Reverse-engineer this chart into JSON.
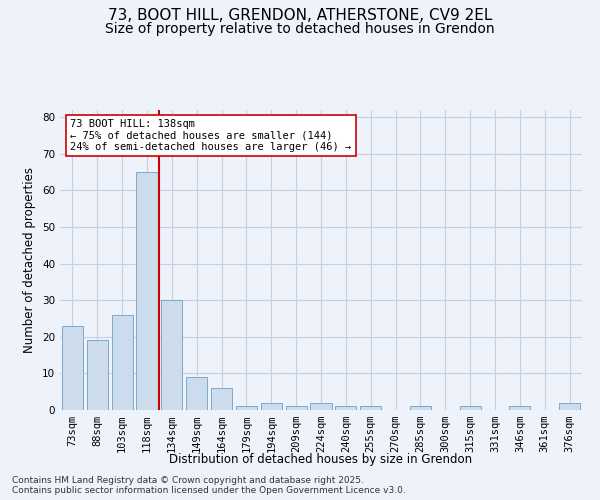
{
  "title_line1": "73, BOOT HILL, GRENDON, ATHERSTONE, CV9 2EL",
  "title_line2": "Size of property relative to detached houses in Grendon",
  "xlabel": "Distribution of detached houses by size in Grendon",
  "ylabel": "Number of detached properties",
  "bar_labels": [
    "73sqm",
    "88sqm",
    "103sqm",
    "118sqm",
    "134sqm",
    "149sqm",
    "164sqm",
    "179sqm",
    "194sqm",
    "209sqm",
    "224sqm",
    "240sqm",
    "255sqm",
    "270sqm",
    "285sqm",
    "300sqm",
    "315sqm",
    "331sqm",
    "346sqm",
    "361sqm",
    "376sqm"
  ],
  "bar_heights": [
    23,
    19,
    26,
    65,
    30,
    9,
    6,
    1,
    2,
    1,
    2,
    1,
    1,
    0,
    1,
    0,
    1,
    0,
    1,
    0,
    2
  ],
  "bar_color": "#ccdcec",
  "bar_edgecolor": "#7aaac8",
  "grid_color": "#c8d0df",
  "background_color": "#eef2fa",
  "vline_x": 3.5,
  "vline_color": "#cc0000",
  "annotation_line1": "73 BOOT HILL: 138sqm",
  "annotation_line2": "← 75% of detached houses are smaller (144)",
  "annotation_line3": "24% of semi-detached houses are larger (46) →",
  "annotation_box_color": "white",
  "annotation_box_edgecolor": "#cc0000",
  "ylim": [
    0,
    82
  ],
  "yticks": [
    0,
    10,
    20,
    30,
    40,
    50,
    60,
    70,
    80
  ],
  "footer_line1": "Contains HM Land Registry data © Crown copyright and database right 2025.",
  "footer_line2": "Contains public sector information licensed under the Open Government Licence v3.0.",
  "title_fontsize": 11,
  "subtitle_fontsize": 10,
  "axis_label_fontsize": 8.5,
  "tick_fontsize": 7.5,
  "annotation_fontsize": 7.5,
  "footer_fontsize": 6.5
}
